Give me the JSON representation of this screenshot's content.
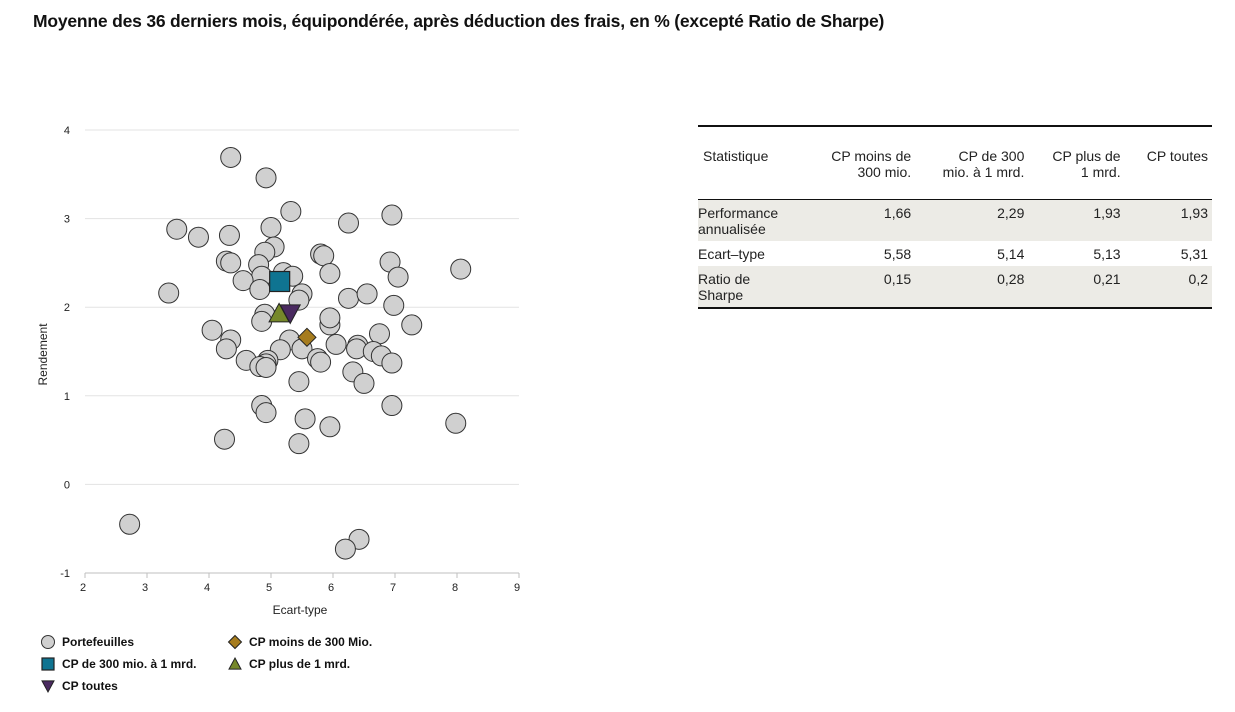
{
  "title": "Moyenne des 36 derniers mois, équipondérée, après déduction des frais, en % (excepté Ratio de Sharpe)",
  "colors": {
    "portfolio": "#d0d0d0",
    "small": "#a67c1e",
    "mid": "#0f7491",
    "large": "#76882a",
    "all": "#4a2a60",
    "grid": "#e3e3e3",
    "axis": "#bfbfbf"
  },
  "chart_data": {
    "type": "scatter",
    "xlabel": "Ecart-type",
    "ylabel": "Rendement",
    "xlim": [
      2,
      9
    ],
    "ylim": [
      -1,
      4
    ],
    "xticks": [
      2,
      3,
      4,
      5,
      6,
      7,
      8,
      9
    ],
    "yticks": [
      -1,
      0,
      1,
      2,
      3,
      4
    ],
    "grid": "horizontal",
    "legend_position": "bottom",
    "series": [
      {
        "name": "Portefeuilles",
        "key": "portfolio",
        "marker": "circle",
        "points": [
          [
            4.35,
            3.69
          ],
          [
            4.92,
            3.46
          ],
          [
            5.32,
            3.08
          ],
          [
            6.25,
            2.95
          ],
          [
            6.95,
            3.04
          ],
          [
            3.48,
            2.88
          ],
          [
            3.83,
            2.79
          ],
          [
            4.33,
            2.81
          ],
          [
            5.0,
            2.9
          ],
          [
            5.05,
            2.68
          ],
          [
            4.9,
            2.62
          ],
          [
            5.8,
            2.6
          ],
          [
            5.85,
            2.58
          ],
          [
            4.28,
            2.52
          ],
          [
            4.35,
            2.5
          ],
          [
            4.8,
            2.48
          ],
          [
            6.92,
            2.51
          ],
          [
            7.05,
            2.34
          ],
          [
            8.06,
            2.43
          ],
          [
            5.95,
            2.38
          ],
          [
            5.2,
            2.39
          ],
          [
            5.35,
            2.35
          ],
          [
            4.85,
            2.35
          ],
          [
            4.55,
            2.3
          ],
          [
            4.82,
            2.2
          ],
          [
            3.35,
            2.16
          ],
          [
            5.5,
            2.15
          ],
          [
            5.45,
            2.08
          ],
          [
            6.25,
            2.1
          ],
          [
            6.55,
            2.15
          ],
          [
            6.98,
            2.02
          ],
          [
            4.05,
            1.74
          ],
          [
            4.35,
            1.63
          ],
          [
            4.9,
            1.92
          ],
          [
            4.85,
            1.84
          ],
          [
            5.95,
            1.8
          ],
          [
            5.95,
            1.88
          ],
          [
            7.27,
            1.8
          ],
          [
            6.75,
            1.7
          ],
          [
            5.3,
            1.63
          ],
          [
            4.28,
            1.53
          ],
          [
            5.5,
            1.53
          ],
          [
            5.15,
            1.52
          ],
          [
            6.05,
            1.58
          ],
          [
            6.4,
            1.57
          ],
          [
            6.38,
            1.53
          ],
          [
            6.65,
            1.5
          ],
          [
            6.78,
            1.45
          ],
          [
            5.75,
            1.42
          ],
          [
            5.8,
            1.38
          ],
          [
            4.6,
            1.4
          ],
          [
            4.95,
            1.4
          ],
          [
            4.92,
            1.36
          ],
          [
            4.82,
            1.33
          ],
          [
            4.92,
            1.32
          ],
          [
            6.95,
            1.37
          ],
          [
            6.32,
            1.27
          ],
          [
            5.45,
            1.16
          ],
          [
            6.5,
            1.14
          ],
          [
            4.85,
            0.89
          ],
          [
            4.92,
            0.81
          ],
          [
            5.55,
            0.74
          ],
          [
            6.95,
            0.89
          ],
          [
            5.95,
            0.65
          ],
          [
            7.98,
            0.69
          ],
          [
            4.25,
            0.51
          ],
          [
            5.45,
            0.46
          ],
          [
            2.72,
            -0.45
          ],
          [
            6.42,
            -0.62
          ],
          [
            6.2,
            -0.73
          ]
        ]
      },
      {
        "name": "CP moins de 300 Mio.",
        "key": "small",
        "marker": "diamond",
        "points": [
          [
            5.58,
            1.66
          ]
        ]
      },
      {
        "name": "CP de 300 mio. à 1 mrd.",
        "key": "mid",
        "marker": "square",
        "points": [
          [
            5.14,
            2.29
          ]
        ]
      },
      {
        "name": "CP plus de 1 mrd.",
        "key": "large",
        "marker": "triangle-up",
        "points": [
          [
            5.13,
            1.93
          ]
        ]
      },
      {
        "name": "CP toutes",
        "key": "all",
        "marker": "triangle-down",
        "points": [
          [
            5.31,
            1.93
          ]
        ]
      }
    ],
    "legend": [
      {
        "label": "Portefeuilles",
        "key": "portfolio",
        "marker": "circle"
      },
      {
        "label": "CP moins de 300 Mio.",
        "key": "small",
        "marker": "diamond"
      },
      {
        "label": "CP de 300 mio. à 1 mrd.",
        "key": "mid",
        "marker": "square"
      },
      {
        "label": "CP plus de 1 mrd.",
        "key": "large",
        "marker": "triangle-up"
      },
      {
        "label": "CP toutes",
        "key": "all",
        "marker": "triangle-down"
      }
    ]
  },
  "table": {
    "headers": [
      [
        "Statistique"
      ],
      [
        "CP moins de",
        "300 mio."
      ],
      [
        "CP de 300",
        "mio. à 1 mrd."
      ],
      [
        "CP plus de",
        "1 mrd."
      ],
      [
        "CP toutes"
      ]
    ],
    "rows": [
      {
        "label": [
          "Performance",
          "annualisée"
        ],
        "values": [
          "1,66",
          "2,29",
          "1,93",
          "1,93"
        ]
      },
      {
        "label": [
          "Ecart–type"
        ],
        "values": [
          "5,58",
          "5,14",
          "5,13",
          "5,31"
        ]
      },
      {
        "label": [
          "Ratio de",
          "Sharpe"
        ],
        "values": [
          "0,15",
          "0,28",
          "0,21",
          "0,2"
        ]
      }
    ]
  }
}
